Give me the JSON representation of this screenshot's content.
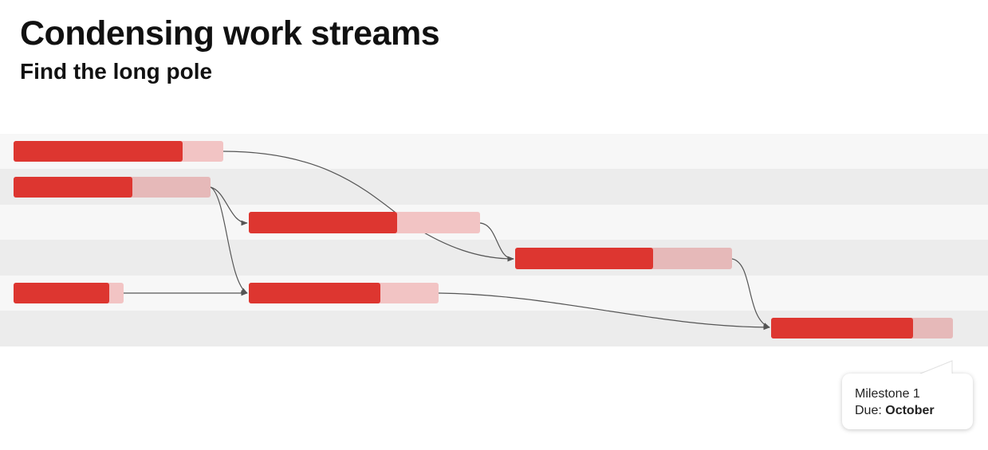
{
  "title": "Condensing work streams",
  "subtitle": "Find the long pole",
  "colors": {
    "done": "#dd3630",
    "remaining_light": "#f2c4c4",
    "remaining_dark": "#e6b9b9",
    "lane_light": "#f7f7f7",
    "lane_dark": "#ececec",
    "arrow": "#555555"
  },
  "callout": {
    "line1": "Milestone 1",
    "due_label": "Due:",
    "due_value": "October"
  }
}
